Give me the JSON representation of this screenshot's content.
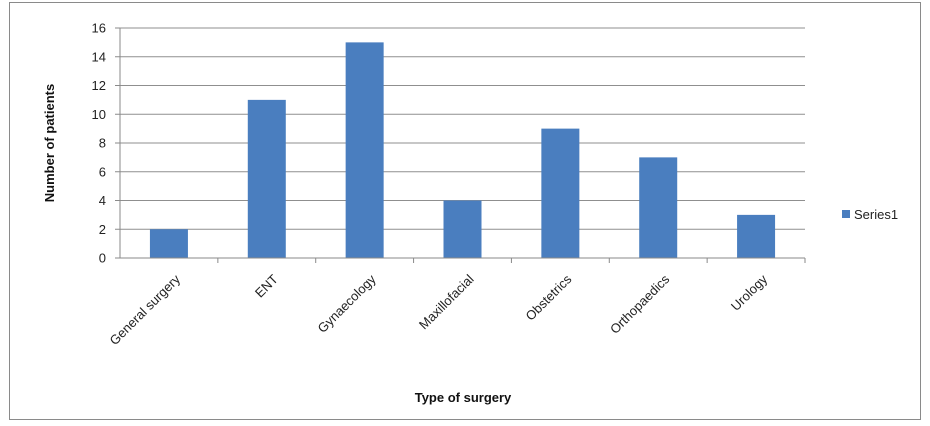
{
  "chart_data": {
    "type": "bar",
    "title": "",
    "xlabel": "Type of surgery",
    "ylabel": "Number of patients",
    "categories": [
      "General surgery",
      "ENT",
      "Gynaecology",
      "Maxillofacial",
      "Obstetrics",
      "Orthopaedics",
      "Urology"
    ],
    "series": [
      {
        "name": "Series1",
        "values": [
          2,
          11,
          15,
          4,
          9,
          7,
          3
        ],
        "color": "#4a7ebf"
      }
    ],
    "ylim": [
      0,
      16
    ],
    "yticks": [
      "0",
      "2",
      "4",
      "6",
      "8",
      "10",
      "12",
      "14",
      "16"
    ],
    "grid": true,
    "legend_position": "right"
  }
}
